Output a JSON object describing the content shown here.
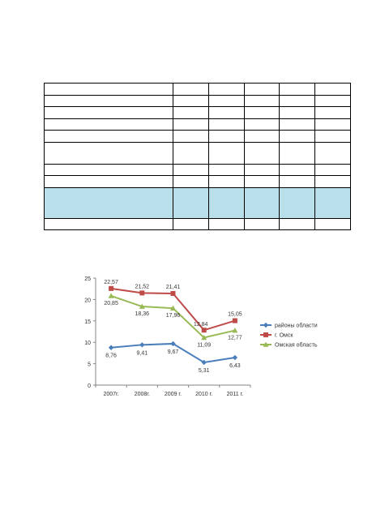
{
  "table": {
    "rows": [
      {
        "kind": "norm",
        "highlight": false
      },
      {
        "kind": "norm",
        "highlight": false
      },
      {
        "kind": "norm",
        "highlight": false
      },
      {
        "kind": "norm",
        "highlight": false
      },
      {
        "kind": "norm",
        "highlight": false
      },
      {
        "kind": "tall",
        "highlight": false
      },
      {
        "kind": "norm",
        "highlight": false
      },
      {
        "kind": "norm",
        "highlight": false
      },
      {
        "kind": "hl",
        "highlight": true
      },
      {
        "kind": "norm",
        "highlight": false
      }
    ],
    "columns": 6,
    "highlight_color": "#b8dfea"
  },
  "chart_data": {
    "type": "line",
    "categories": [
      "2007г.",
      "2008г.",
      "2009 г.",
      "2010 г.",
      "2011 г."
    ],
    "ylim": [
      0,
      25
    ],
    "yticks": [
      "0",
      "5",
      "10",
      "15",
      "20",
      "25"
    ],
    "legend_position": "right",
    "series": [
      {
        "name": "районы области",
        "values": [
          8.76,
          9.41,
          9.67,
          5.31,
          6.43
        ],
        "labels": [
          "8,76",
          "9,41",
          "9,67",
          "5,31",
          "6,43"
        ],
        "color": "#4a7ebb",
        "marker": "diamond"
      },
      {
        "name": "г. Омск",
        "values": [
          22.57,
          21.52,
          21.41,
          12.84,
          15.05
        ],
        "labels": [
          "22,57",
          "21,52",
          "21,41",
          "12,84",
          "15,05"
        ],
        "color": "#be4b48",
        "marker": "square"
      },
      {
        "name": "Омская область",
        "values": [
          20.85,
          18.36,
          17.96,
          11.09,
          12.77
        ],
        "labels": [
          "20,85",
          "18,36",
          "17,96",
          "11,09",
          "12,77"
        ],
        "color": "#98b954",
        "marker": "triangle"
      }
    ]
  }
}
